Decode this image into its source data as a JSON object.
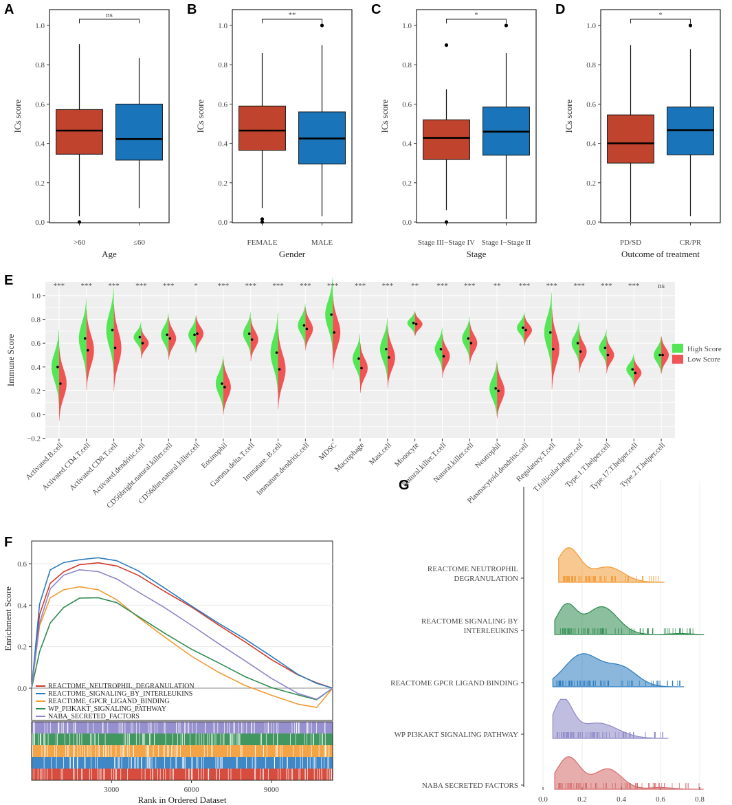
{
  "colors": {
    "red": "#c0432d",
    "blue": "#1a74b9",
    "green": "#55e655",
    "lowred": "#f05454",
    "orange": "#f19a34",
    "darkgreen": "#2e8b4f",
    "lavender": "#8d88c6",
    "rose": "#d46a6a",
    "gseablue": "#2b7bbf",
    "gseared": "#d23a2a",
    "gseaorange": "#f29a33",
    "gseagreen": "#2e8b4f",
    "gseapurple": "#8c84c9"
  },
  "chart_data": [
    {
      "type": "box",
      "panel": "A",
      "xlabel": "Age",
      "ylabel": "ICs score",
      "ylim": [
        0,
        1
      ],
      "yticks": [
        "0.0",
        "0.2",
        "0.4",
        "0.6",
        "0.8",
        "1.0"
      ],
      "categories": [
        ">60",
        "≤60"
      ],
      "boxes": [
        {
          "name": ">60",
          "q1": 0.345,
          "median": 0.465,
          "q3": 0.572,
          "whisker_low": 0.03,
          "whisker_high": 0.905,
          "outliers": [
            0.0
          ],
          "color": "red"
        },
        {
          "name": "≤60",
          "q1": 0.315,
          "median": 0.422,
          "q3": 0.6,
          "whisker_low": 0.07,
          "whisker_high": 0.835,
          "outliers": [],
          "color": "blue"
        }
      ],
      "significance": "ns"
    },
    {
      "type": "box",
      "panel": "B",
      "xlabel": "Gender",
      "ylabel": "ICs score",
      "ylim": [
        0,
        1
      ],
      "yticks": [
        "0.0",
        "0.2",
        "0.4",
        "0.6",
        "0.8",
        "1.0"
      ],
      "categories": [
        "FEMALE",
        "MALE"
      ],
      "boxes": [
        {
          "name": "FEMALE",
          "q1": 0.365,
          "median": 0.465,
          "q3": 0.59,
          "whisker_low": 0.07,
          "whisker_high": 0.86,
          "outliers": [
            0.0,
            0.015
          ],
          "color": "red"
        },
        {
          "name": "MALE",
          "q1": 0.295,
          "median": 0.425,
          "q3": 0.56,
          "whisker_low": 0.03,
          "whisker_high": 0.9,
          "outliers": [
            1.0
          ],
          "color": "blue"
        }
      ],
      "significance": "**"
    },
    {
      "type": "box",
      "panel": "C",
      "xlabel": "Stage",
      "ylabel": "ICs score",
      "ylim": [
        0,
        1
      ],
      "yticks": [
        "0.0",
        "0.2",
        "0.4",
        "0.6",
        "0.8",
        "1.0"
      ],
      "categories": [
        "Stage III−Stage IV",
        "Stage I−Stage II"
      ],
      "boxes": [
        {
          "name": "Stage III−Stage IV",
          "q1": 0.318,
          "median": 0.428,
          "q3": 0.52,
          "whisker_low": 0.06,
          "whisker_high": 0.675,
          "outliers": [
            0.9,
            0.0
          ],
          "color": "red"
        },
        {
          "name": "Stage I−Stage II",
          "q1": 0.34,
          "median": 0.46,
          "q3": 0.585,
          "whisker_low": 0.015,
          "whisker_high": 0.86,
          "outliers": [
            1.0
          ],
          "color": "blue"
        }
      ],
      "significance": "*"
    },
    {
      "type": "box",
      "panel": "D",
      "xlabel": "Outcome of treatment",
      "ylabel": "ICs score",
      "ylim": [
        0,
        1
      ],
      "yticks": [
        "0.0",
        "0.2",
        "0.4",
        "0.6",
        "0.8",
        "1.0"
      ],
      "categories": [
        "PD/SD",
        "CR/PR"
      ],
      "boxes": [
        {
          "name": "PD/SD",
          "q1": 0.3,
          "median": 0.4,
          "q3": 0.545,
          "whisker_low": 0.0,
          "whisker_high": 0.9,
          "outliers": [],
          "color": "red"
        },
        {
          "name": "CR/PR",
          "q1": 0.342,
          "median": 0.467,
          "q3": 0.585,
          "whisker_low": 0.03,
          "whisker_high": 0.88,
          "outliers": [
            1.0
          ],
          "color": "blue"
        }
      ],
      "significance": "*"
    },
    {
      "type": "split-violin",
      "panel": "E",
      "ylabel": "Immune Score",
      "ylim": [
        -0.2,
        1.1
      ],
      "yticks": [
        "−0.2",
        "0.0",
        "0.2",
        "0.4",
        "0.6",
        "0.8",
        "1.0"
      ],
      "legend": {
        "high": "High Score",
        "low": "Low Score"
      },
      "categories": [
        "Activated.B.cell",
        "Activated.CD4.T.cell",
        "Activated.CD8.T.cell",
        "Activated.dendritic.cell",
        "CD56bright.natural.killer.cell",
        "CD56dim.natural.killer.cell",
        "Eosinophil",
        "Gamma.delta.T.cell",
        "Immature..B.cell",
        "Immature.dendritic.cell",
        "MDSC",
        "Macrophage",
        "Mast.cell",
        "Monocyte",
        "Natural.killer.T.cell",
        "Natural.killer.cell",
        "Neutrophil",
        "Plasmacytoid.dendritic.cell",
        "Regulatory.T.cell",
        "T.follicular.helper.cell",
        "Type.1.T.helper.cell",
        "Type.17.T.helper.cell",
        "Type.2.T.helper.cell"
      ],
      "high_median": [
        0.4,
        0.64,
        0.71,
        0.65,
        0.67,
        0.67,
        0.26,
        0.68,
        0.52,
        0.75,
        0.84,
        0.47,
        0.55,
        0.77,
        0.55,
        0.64,
        0.22,
        0.73,
        0.69,
        0.6,
        0.56,
        0.38,
        0.5
      ],
      "low_median": [
        0.26,
        0.54,
        0.56,
        0.6,
        0.64,
        0.68,
        0.23,
        0.63,
        0.38,
        0.72,
        0.69,
        0.39,
        0.48,
        0.76,
        0.49,
        0.6,
        0.2,
        0.71,
        0.55,
        0.53,
        0.5,
        0.35,
        0.5
      ],
      "spread": [
        0.12,
        0.13,
        0.14,
        0.05,
        0.07,
        0.06,
        0.09,
        0.07,
        0.13,
        0.07,
        0.12,
        0.08,
        0.1,
        0.04,
        0.07,
        0.07,
        0.09,
        0.05,
        0.13,
        0.07,
        0.06,
        0.05,
        0.06
      ],
      "significance": [
        "***",
        "***",
        "***",
        "***",
        "***",
        "*",
        "***",
        "***",
        "***",
        "***",
        "***",
        "***",
        "***",
        "**",
        "***",
        "***",
        "**",
        "***",
        "***",
        "***",
        "***",
        "***",
        "ns"
      ]
    },
    {
      "type": "line",
      "panel": "F",
      "xlabel": "Rank in Ordered Dataset",
      "ylabel": "Enrichment Score",
      "xlim": [
        0,
        11300
      ],
      "ylim": [
        -0.12,
        0.66
      ],
      "xticks": [
        "3000",
        "6000",
        "9000"
      ],
      "yticks": [
        "0.0",
        "0.2",
        "0.4",
        "0.6"
      ],
      "series": [
        {
          "name": "REACTOME_NEUTROPHIL_DEGRANULATION",
          "color": "gseared",
          "x": [
            0,
            300,
            700,
            1200,
            1800,
            2500,
            3200,
            4000,
            5000,
            6000,
            7000,
            8000,
            9000,
            10000,
            10700,
            11300
          ],
          "y": [
            0,
            0.35,
            0.5,
            0.56,
            0.6,
            0.61,
            0.59,
            0.54,
            0.46,
            0.39,
            0.31,
            0.23,
            0.14,
            0.06,
            0.02,
            0.0
          ]
        },
        {
          "name": "REACTOME_SIGNALING_BY_INTERLEUKINS",
          "color": "gseablue",
          "x": [
            0,
            300,
            700,
            1200,
            1800,
            2500,
            3200,
            4000,
            5000,
            6000,
            7000,
            8000,
            9000,
            10000,
            10700,
            11300
          ],
          "y": [
            0,
            0.4,
            0.57,
            0.61,
            0.625,
            0.63,
            0.61,
            0.56,
            0.48,
            0.4,
            0.32,
            0.24,
            0.15,
            0.06,
            0.02,
            0.0
          ]
        },
        {
          "name": "REACTOME_GPCR_LIGAND_BINDING",
          "color": "gseaorange",
          "x": [
            0,
            300,
            700,
            1200,
            1800,
            2500,
            3200,
            4000,
            5000,
            6000,
            7000,
            8000,
            9000,
            10000,
            10700,
            11300
          ],
          "y": [
            0,
            0.3,
            0.44,
            0.48,
            0.49,
            0.47,
            0.42,
            0.34,
            0.25,
            0.16,
            0.08,
            0.01,
            -0.04,
            -0.08,
            -0.09,
            0.0
          ]
        },
        {
          "name": "WP_PI3KAKT_SIGNALING_PATHWAY",
          "color": "gseagreen",
          "x": [
            0,
            300,
            700,
            1200,
            1800,
            2500,
            3200,
            4000,
            5000,
            6000,
            7000,
            8000,
            9000,
            10000,
            10700,
            11300
          ],
          "y": [
            0,
            0.18,
            0.32,
            0.39,
            0.43,
            0.43,
            0.41,
            0.35,
            0.27,
            0.19,
            0.12,
            0.05,
            0.0,
            -0.03,
            -0.05,
            0.0
          ]
        },
        {
          "name": "NABA_SECRETED_FACTORS",
          "color": "gseapurple",
          "x": [
            0,
            300,
            700,
            1200,
            1800,
            2500,
            3200,
            4000,
            5000,
            6000,
            7000,
            8000,
            9000,
            10000,
            10700,
            11300
          ],
          "y": [
            0,
            0.32,
            0.48,
            0.54,
            0.565,
            0.56,
            0.53,
            0.47,
            0.39,
            0.3,
            0.21,
            0.13,
            0.05,
            -0.02,
            -0.05,
            0.0
          ]
        }
      ]
    },
    {
      "type": "ridgeline",
      "panel": "G",
      "xlim": [
        -0.05,
        0.85
      ],
      "xticks": [
        "0.0",
        "0.2",
        "0.4",
        "0.6",
        "0.8"
      ],
      "series": [
        {
          "name": "REACTOME NEUTROPHIL DEGRANULATION",
          "label_lines": [
            "REACTOME NEUTROPHIL",
            "DEGRANULATION"
          ],
          "color": "orange",
          "range": [
            0.08,
            0.62
          ],
          "peaks": [
            [
              0.13,
              1.0,
              0.06
            ],
            [
              0.33,
              0.45,
              0.08
            ]
          ]
        },
        {
          "name": "REACTOME SIGNALING BY INTERLEUKINS",
          "label_lines": [
            "REACTOME SIGNALING BY",
            "INTERLEUKINS"
          ],
          "color": "darkgreen",
          "range": [
            0.06,
            0.82
          ],
          "peaks": [
            [
              0.12,
              0.85,
              0.05
            ],
            [
              0.3,
              0.82,
              0.08
            ],
            [
              0.7,
              0.03,
              0.05
            ]
          ]
        },
        {
          "name": "REACTOME GPCR LIGAND BINDING",
          "label_lines": [
            "REACTOME GPCR LIGAND BINDING"
          ],
          "color": "gseablue",
          "range": [
            0.05,
            0.72
          ],
          "peaks": [
            [
              0.2,
              0.95,
              0.09
            ],
            [
              0.4,
              0.55,
              0.08
            ]
          ]
        },
        {
          "name": "WP PI3KAKT SIGNALING PATHWAY",
          "label_lines": [
            "WP PI3KAKT SIGNALING PATHWAY"
          ],
          "color": "lavender",
          "range": [
            0.05,
            0.64
          ],
          "peaks": [
            [
              0.1,
              1.1,
              0.05
            ],
            [
              0.28,
              0.45,
              0.1
            ]
          ]
        },
        {
          "name": "NABA SECRETED FACTORS",
          "label_lines": [
            "NABA SECRETED FACTORS"
          ],
          "color": "rose",
          "range": [
            0.06,
            0.82
          ],
          "peaks": [
            [
              0.13,
              0.95,
              0.06
            ],
            [
              0.33,
              0.6,
              0.07
            ],
            [
              0.6,
              0.05,
              0.06
            ]
          ]
        }
      ]
    }
  ]
}
